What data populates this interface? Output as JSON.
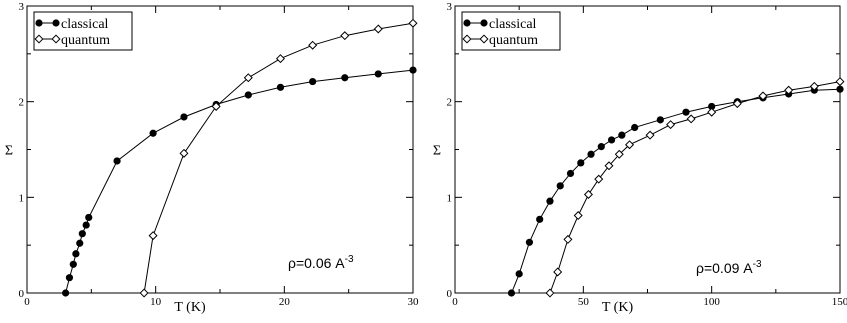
{
  "chart_data": [
    {
      "type": "line",
      "title": "",
      "xlabel": "T (K)",
      "ylabel": "Σ",
      "xlim": [
        0,
        30
      ],
      "ylim": [
        0,
        3
      ],
      "xticks": [
        0,
        10,
        20,
        30
      ],
      "yticks": [
        0,
        1,
        2,
        3
      ],
      "grid": false,
      "legend": "top-left",
      "annotation": {
        "base": "ρ=0.06 A",
        "sup": "-3"
      },
      "series": [
        {
          "name": "classical",
          "marker": "filled-circle",
          "x": [
            3.0,
            3.3,
            3.6,
            3.8,
            4.1,
            4.3,
            4.6,
            4.8,
            7.0,
            9.8,
            12.2,
            14.7,
            17.2,
            19.7,
            22.2,
            24.7,
            27.3,
            30.0
          ],
          "y": [
            0.0,
            0.16,
            0.3,
            0.41,
            0.52,
            0.62,
            0.71,
            0.79,
            1.38,
            1.67,
            1.84,
            1.97,
            2.07,
            2.15,
            2.21,
            2.25,
            2.29,
            2.33
          ]
        },
        {
          "name": "quantum",
          "marker": "open-diamond",
          "x": [
            9.1,
            9.8,
            12.2,
            14.7,
            17.2,
            19.7,
            22.2,
            24.7,
            27.3,
            30.0
          ],
          "y": [
            0.0,
            0.6,
            1.46,
            1.95,
            2.25,
            2.45,
            2.59,
            2.69,
            2.76,
            2.82
          ]
        }
      ]
    },
    {
      "type": "line",
      "title": "",
      "xlabel": "T (K)",
      "ylabel": "Σ",
      "xlim": [
        0,
        150
      ],
      "ylim": [
        0,
        3
      ],
      "xticks": [
        0,
        50,
        100,
        150
      ],
      "yticks": [
        0,
        1,
        2,
        3
      ],
      "grid": false,
      "legend": "top-left",
      "annotation": {
        "base": "ρ=0.09 A",
        "sup": "-3"
      },
      "series": [
        {
          "name": "classical",
          "marker": "filled-circle",
          "x": [
            22,
            25,
            29,
            33,
            37,
            41,
            45,
            49,
            53,
            57,
            61,
            65,
            70,
            80,
            90,
            100,
            110,
            120,
            130,
            140,
            150
          ],
          "y": [
            0.0,
            0.2,
            0.53,
            0.77,
            0.96,
            1.12,
            1.25,
            1.36,
            1.45,
            1.53,
            1.6,
            1.65,
            1.73,
            1.81,
            1.89,
            1.95,
            2.0,
            2.04,
            2.08,
            2.12,
            2.13
          ]
        },
        {
          "name": "quantum",
          "marker": "open-diamond",
          "x": [
            37,
            40,
            44,
            48,
            52,
            56,
            60,
            64,
            68,
            76,
            84,
            92,
            100,
            110,
            120,
            130,
            140,
            150
          ],
          "y": [
            0.0,
            0.22,
            0.56,
            0.81,
            1.03,
            1.19,
            1.33,
            1.45,
            1.55,
            1.65,
            1.76,
            1.82,
            1.89,
            1.98,
            2.06,
            2.12,
            2.16,
            2.21
          ]
        }
      ]
    }
  ]
}
